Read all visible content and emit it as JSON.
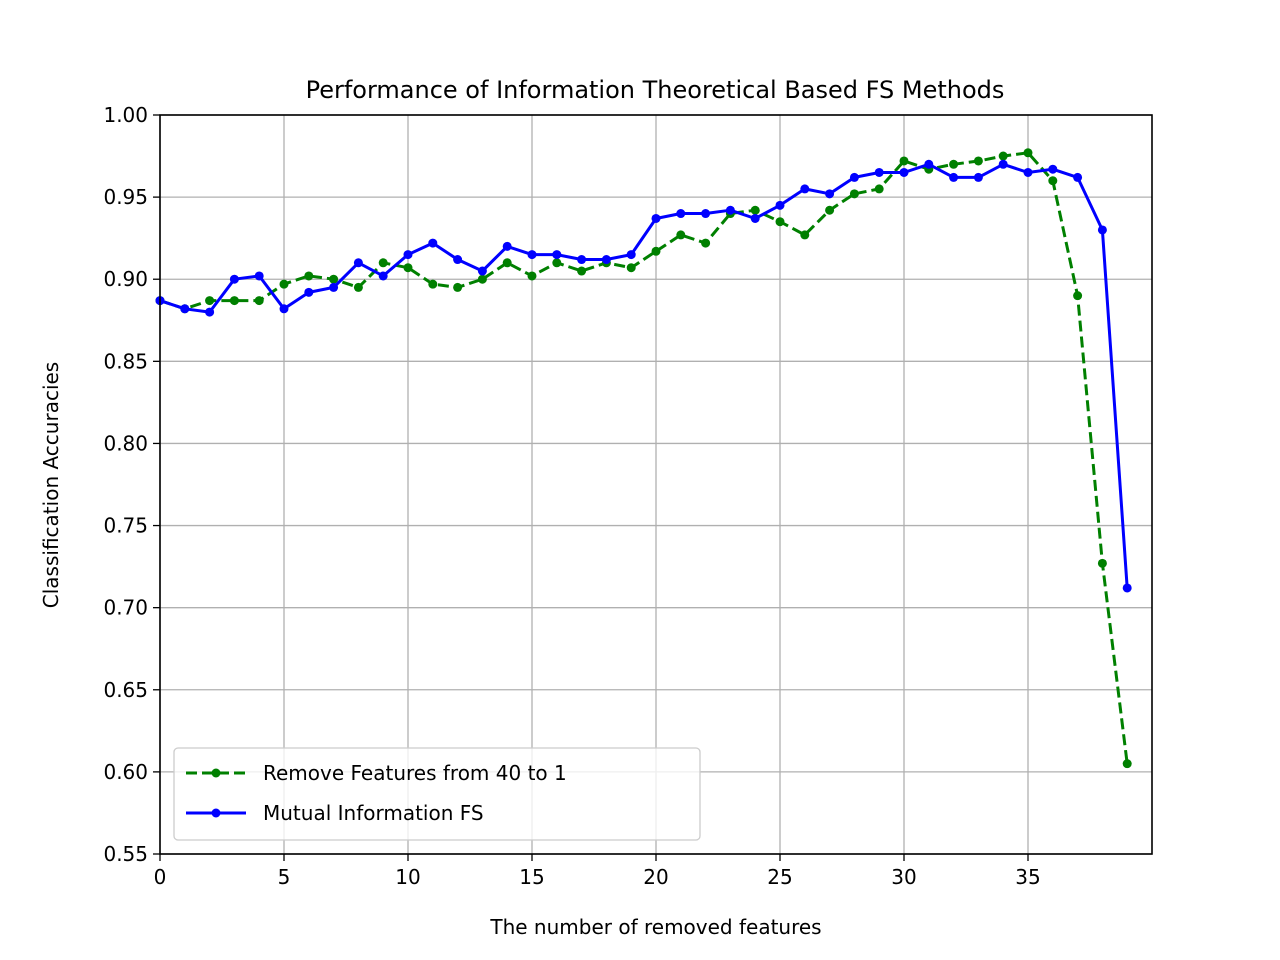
{
  "chart_data": {
    "type": "line",
    "title": "Performance of Information Theoretical Based FS Methods",
    "xlabel": "The number of removed features",
    "ylabel": "Classification Accuracies",
    "xlim": [
      0,
      40
    ],
    "ylim": [
      0.55,
      1.0
    ],
    "xticks": [
      0,
      5,
      10,
      15,
      20,
      25,
      30,
      35
    ],
    "xtick_labels": [
      "0",
      "5",
      "10",
      "15",
      "20",
      "25",
      "30",
      "35"
    ],
    "yticks": [
      0.55,
      0.6,
      0.65,
      0.7,
      0.75,
      0.8,
      0.85,
      0.9,
      0.95,
      1.0
    ],
    "ytick_labels": [
      "0.55",
      "0.60",
      "0.65",
      "0.70",
      "0.75",
      "0.80",
      "0.85",
      "0.90",
      "0.95",
      "1.00"
    ],
    "grid": true,
    "legend_position": "lower-left",
    "x": [
      0,
      1,
      2,
      3,
      4,
      5,
      6,
      7,
      8,
      9,
      10,
      11,
      12,
      13,
      14,
      15,
      16,
      17,
      18,
      19,
      20,
      21,
      22,
      23,
      24,
      25,
      26,
      27,
      28,
      29,
      30,
      31,
      32,
      33,
      34,
      35,
      36,
      37,
      38,
      39
    ],
    "series": [
      {
        "name": "Remove Features from 40 to 1",
        "color": "#008000",
        "style": "dashed",
        "values": [
          0.887,
          0.882,
          0.887,
          0.887,
          0.887,
          0.897,
          0.902,
          0.9,
          0.895,
          0.91,
          0.907,
          0.897,
          0.895,
          0.9,
          0.91,
          0.902,
          0.91,
          0.905,
          0.91,
          0.907,
          0.917,
          0.927,
          0.922,
          0.94,
          0.942,
          0.935,
          0.927,
          0.942,
          0.952,
          0.955,
          0.972,
          0.967,
          0.97,
          0.972,
          0.975,
          0.977,
          0.96,
          0.89,
          0.727,
          0.605
        ]
      },
      {
        "name": "Mutual Information FS",
        "color": "#0000ff",
        "style": "solid",
        "values": [
          0.887,
          0.882,
          0.88,
          0.9,
          0.902,
          0.882,
          0.892,
          0.895,
          0.91,
          0.902,
          0.915,
          0.922,
          0.912,
          0.905,
          0.92,
          0.915,
          0.915,
          0.912,
          0.912,
          0.915,
          0.937,
          0.94,
          0.94,
          0.942,
          0.937,
          0.945,
          0.955,
          0.952,
          0.962,
          0.965,
          0.965,
          0.97,
          0.962,
          0.962,
          0.97,
          0.965,
          0.967,
          0.962,
          0.93,
          0.712
        ]
      }
    ]
  }
}
